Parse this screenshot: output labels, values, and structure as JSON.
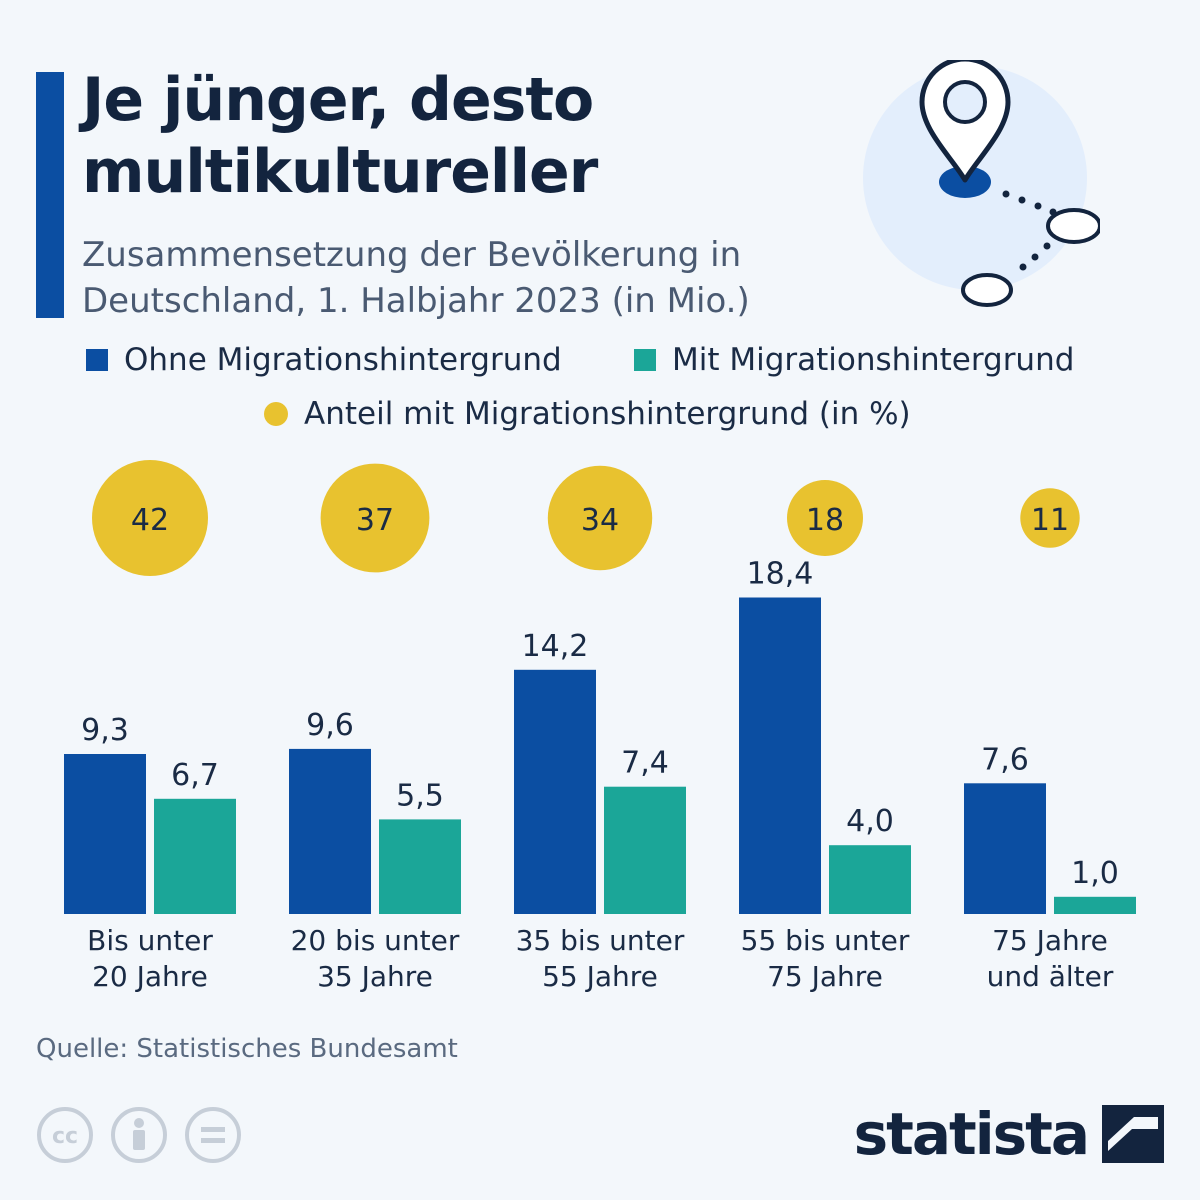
{
  "header": {
    "title": "Je jünger, desto multikultureller",
    "subtitle": "Zusammensetzung der Bevölkerung in Deutschland, 1. Halbjahr 2023 (in Mio.)"
  },
  "legend": {
    "ohne": "Ohne Migrationshintergrund",
    "mit": "Mit  Migrationshintergrund",
    "anteil": "Anteil mit Migrationshintergrund (in %)"
  },
  "colors": {
    "ohne": "#0b4ea2",
    "mit": "#1ba698",
    "anteil": "#e8c22f",
    "accent": "#0b4ea2"
  },
  "chart_data": {
    "type": "bar",
    "categories": [
      [
        "Bis unter",
        "20 Jahre"
      ],
      [
        "20 bis unter",
        "35 Jahre"
      ],
      [
        "35 bis unter",
        "55 Jahre"
      ],
      [
        "55 bis unter",
        "75 Jahre"
      ],
      [
        "75 Jahre",
        "und älter"
      ]
    ],
    "series": [
      {
        "name": "Ohne Migrationshintergrund",
        "values": [
          9.3,
          9.6,
          14.2,
          18.4,
          7.6
        ],
        "labels": [
          "9,3",
          "9,6",
          "14,2",
          "18,4",
          "7,6"
        ]
      },
      {
        "name": "Mit  Migrationshintergrund",
        "values": [
          6.7,
          5.5,
          7.4,
          4.0,
          1.0
        ],
        "labels": [
          "6,7",
          "5,5",
          "7,4",
          "4,0",
          "1,0"
        ]
      }
    ],
    "share": {
      "name": "Anteil mit Migrationshintergrund (in %)",
      "values": [
        42,
        37,
        34,
        18,
        11
      ],
      "labels": [
        "42",
        "37",
        "34",
        "18",
        "11"
      ]
    },
    "ylim": [
      0,
      20
    ],
    "grid": false,
    "legend_position": "top"
  },
  "footer": {
    "source": "Quelle: Statistisches Bundesamt",
    "brand": "statista",
    "license_icons": [
      "cc-icon",
      "attribution-icon",
      "no-derivatives-icon"
    ]
  }
}
